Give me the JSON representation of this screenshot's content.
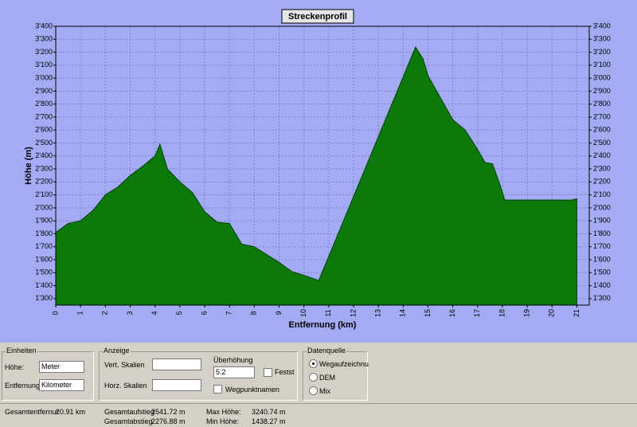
{
  "chart_data": {
    "type": "area",
    "title": "Streckenprofil",
    "x_label": "Entfernung (km)",
    "y_label": "Höhe (m)",
    "x": [
      0,
      0.5,
      1,
      1.5,
      2,
      2.5,
      3,
      3.5,
      4,
      4.2,
      4.5,
      5,
      5.5,
      6,
      6.5,
      7,
      7.5,
      8,
      8.5,
      9,
      9.5,
      10,
      10.3,
      10.6,
      14.5,
      14.8,
      15,
      15.5,
      16,
      16.5,
      17,
      17.3,
      17.6,
      17.9,
      18.1,
      19,
      20,
      20.8,
      21
    ],
    "series": [
      {
        "color": "#0b7a0b",
        "values": [
          1810,
          1880,
          1900,
          1980,
          2100,
          2160,
          2250,
          2320,
          2400,
          2490,
          2300,
          2200,
          2120,
          1970,
          1890,
          1880,
          1720,
          1700,
          1640,
          1580,
          1510,
          1480,
          1460,
          1440,
          3240,
          3150,
          3020,
          2850,
          2680,
          2600,
          2450,
          2350,
          2340,
          2180,
          2060,
          2060,
          2060,
          2060,
          2070
        ]
      }
    ],
    "xlim": [
      0,
      21.5
    ],
    "ylim": [
      1250,
      3400
    ],
    "xticks": [
      0,
      1,
      2,
      3,
      4,
      5,
      6,
      7,
      8,
      9,
      10,
      11,
      12,
      13,
      14,
      15,
      16,
      17,
      18,
      19,
      20,
      21
    ],
    "yticks": [
      {
        "value": 1300,
        "label": "1'300"
      },
      {
        "value": 1400,
        "label": "1'400"
      },
      {
        "value": 1500,
        "label": "1'500"
      },
      {
        "value": 1600,
        "label": "1'600"
      },
      {
        "value": 1700,
        "label": "1'700"
      },
      {
        "value": 1800,
        "label": "1'800"
      },
      {
        "value": 1900,
        "label": "1'900"
      },
      {
        "value": 2000,
        "label": "2'000"
      },
      {
        "value": 2100,
        "label": "2'100"
      },
      {
        "value": 2200,
        "label": "2'200"
      },
      {
        "value": 2300,
        "label": "2'300"
      },
      {
        "value": 2400,
        "label": "2'400"
      },
      {
        "value": 2500,
        "label": "2'500"
      },
      {
        "value": 2600,
        "label": "2'600"
      },
      {
        "value": 2700,
        "label": "2'700"
      },
      {
        "value": 2800,
        "label": "2'800"
      },
      {
        "value": 2900,
        "label": "2'900"
      },
      {
        "value": 3000,
        "label": "3'000"
      },
      {
        "value": 3100,
        "label": "3'100"
      },
      {
        "value": 3200,
        "label": "3'200"
      },
      {
        "value": 3300,
        "label": "3'300"
      },
      {
        "value": 3400,
        "label": "3'400"
      }
    ],
    "grid": true
  },
  "panel": {
    "units": {
      "title": "Einheiten",
      "height_label": "Höhe:",
      "height_value": "Meter",
      "distance_label": "Entfernung:",
      "distance_value": "Kilometer"
    },
    "display": {
      "title": "Anzeige",
      "vert_label": "Vert. Skalien",
      "horz_label": "Horz. Skalien",
      "exaggeration_label": "Überhöhung",
      "exaggeration_value": "5.2",
      "fixed_label": "Festst",
      "waypoints_label": "Wegpunktnamen"
    },
    "source": {
      "title": "Datenquelle",
      "options": [
        "Wegaufzeichnu",
        "DEM",
        "Mix"
      ]
    },
    "stats": {
      "distance_label": "Gesamtentfernur",
      "distance_value": "20.91 km",
      "ascent_label": "Gesamtaufstieg",
      "ascent_value": "2541.72 m",
      "descent_label": "Gesamtabstieg",
      "descent_value": "2276.88 m",
      "max_label": "Max Höhe:",
      "max_value": "3240.74 m",
      "min_label": "Min Höhe:",
      "min_value": "1438.27 m"
    }
  }
}
